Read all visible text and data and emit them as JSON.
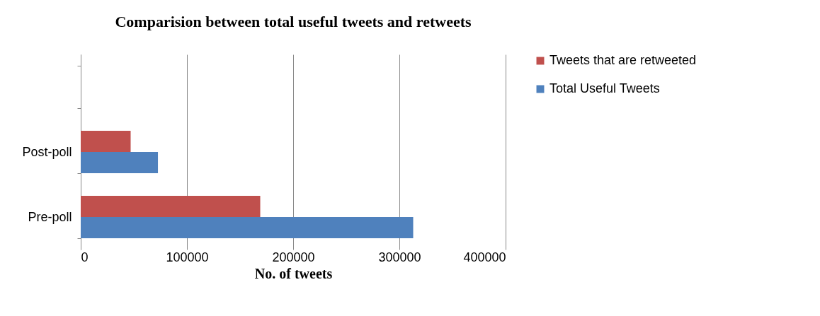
{
  "chart_data": {
    "type": "bar",
    "orientation": "horizontal",
    "title": "Comparision between total useful tweets and retweets",
    "xlabel": "No. of tweets",
    "categories": [
      null,
      "Post-poll",
      "Pre-poll"
    ],
    "series": [
      {
        "name": "Tweets that are retweeted",
        "color": "#c0504d",
        "values": [
          null,
          47000,
          169000
        ]
      },
      {
        "name": "Total Useful Tweets",
        "color": "#4f81bd",
        "values": [
          null,
          72700,
          313000
        ]
      }
    ],
    "xlim": [
      0,
      400000
    ],
    "xticks": [
      0,
      100000,
      200000,
      300000,
      400000
    ],
    "grid": "x",
    "legend": "right"
  }
}
